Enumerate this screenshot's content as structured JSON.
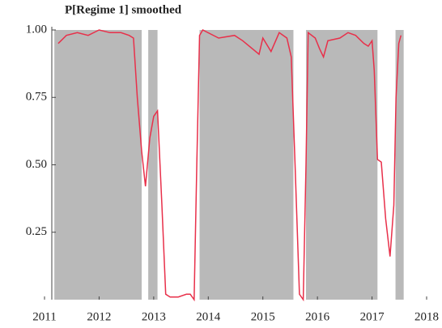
{
  "chart_data": {
    "type": "line",
    "title": "P[Regime 1] smoothed",
    "x": [
      2011.25,
      2011.4,
      2011.6,
      2011.8,
      2012.0,
      2012.2,
      2012.4,
      2012.55,
      2012.63,
      2012.7,
      2012.78,
      2012.85,
      2012.93,
      2013.0,
      2013.07,
      2013.15,
      2013.22,
      2013.3,
      2013.45,
      2013.6,
      2013.67,
      2013.74,
      2013.79,
      2013.84,
      2013.9,
      2014.19,
      2014.48,
      2014.63,
      2014.93,
      2015.0,
      2015.15,
      2015.3,
      2015.44,
      2015.52,
      2015.59,
      2015.67,
      2015.74,
      2015.79,
      2015.83,
      2015.96,
      2016.04,
      2016.11,
      2016.19,
      2016.41,
      2016.56,
      2016.7,
      2016.85,
      2016.93,
      2017.0,
      2017.04,
      2017.1,
      2017.17,
      2017.25,
      2017.33,
      2017.4,
      2017.44,
      2017.49,
      2017.53
    ],
    "series": [
      {
        "name": "P[Regime 1]",
        "color": "#e8304a",
        "values": [
          0.95,
          0.98,
          0.99,
          0.98,
          1.0,
          0.99,
          0.99,
          0.98,
          0.97,
          0.75,
          0.55,
          0.42,
          0.6,
          0.68,
          0.7,
          0.35,
          0.02,
          0.01,
          0.01,
          0.02,
          0.02,
          0.0,
          0.5,
          0.98,
          1.0,
          0.97,
          0.98,
          0.96,
          0.91,
          0.97,
          0.92,
          0.99,
          0.97,
          0.9,
          0.5,
          0.02,
          0.0,
          0.5,
          0.99,
          0.97,
          0.93,
          0.9,
          0.96,
          0.97,
          0.99,
          0.98,
          0.95,
          0.94,
          0.96,
          0.85,
          0.52,
          0.51,
          0.3,
          0.16,
          0.35,
          0.75,
          0.95,
          0.98
        ]
      }
    ],
    "shaded_regions": [
      [
        2011.18,
        2012.78
      ],
      [
        2012.9,
        2013.07
      ],
      [
        2013.84,
        2015.56
      ],
      [
        2015.79,
        2017.1
      ],
      [
        2017.43,
        2017.58
      ]
    ],
    "shade_color": "#b9b9b9",
    "xlim": [
      2011,
      2018
    ],
    "xticks": [
      2011,
      2012,
      2013,
      2014,
      2015,
      2016,
      2017,
      2018
    ],
    "ylim": [
      0,
      1
    ],
    "yticks": [
      {
        "value": 0.25,
        "label": "0.25"
      },
      {
        "value": 0.5,
        "label": "0.50"
      },
      {
        "value": 0.75,
        "label": "0.75"
      },
      {
        "value": 1,
        "label": "1.00"
      }
    ]
  }
}
